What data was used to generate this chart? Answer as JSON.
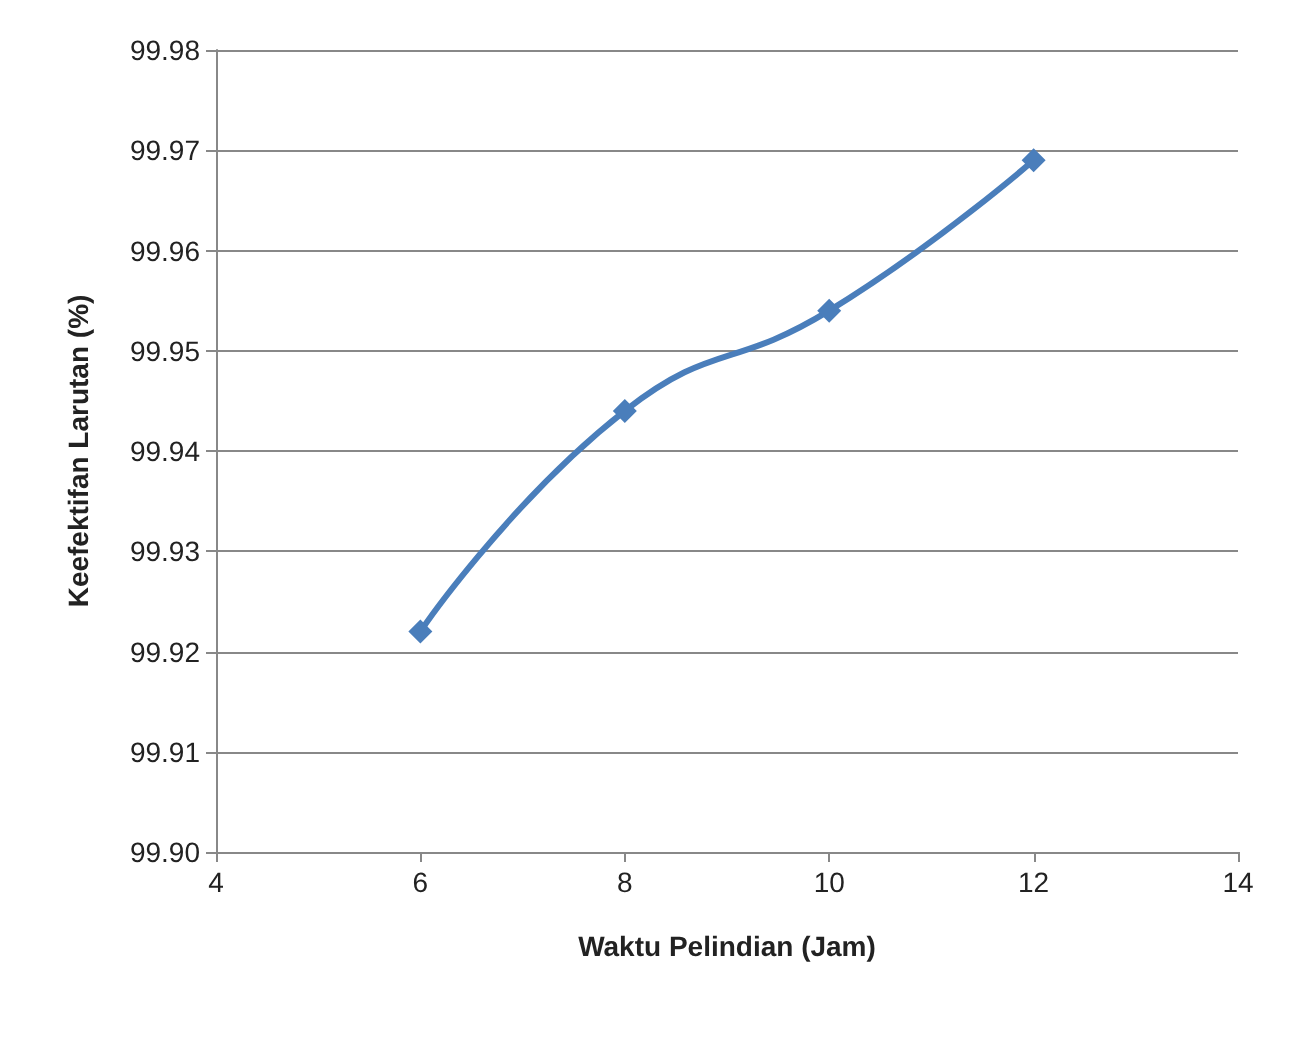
{
  "chart_data": {
    "type": "line",
    "xlabel": "Waktu Pelindian (Jam)",
    "ylabel": "Keefektifan Larutan (%)",
    "x": [
      6,
      8,
      10,
      12
    ],
    "series": [
      {
        "color": "#4a7ebb",
        "values": [
          99.922,
          99.944,
          99.954,
          99.969
        ]
      }
    ],
    "xlim": [
      4,
      14
    ],
    "xticks": [
      4,
      6,
      8,
      10,
      12,
      14
    ],
    "ylim": [
      99.9,
      99.98
    ],
    "yticks": [
      {
        "value": 99.9,
        "label": "99.90"
      },
      99.91,
      99.92,
      99.93,
      99.94,
      99.95,
      99.96,
      99.97,
      99.98
    ],
    "grid": "y",
    "marker": "diamond",
    "line_style": "solid"
  }
}
